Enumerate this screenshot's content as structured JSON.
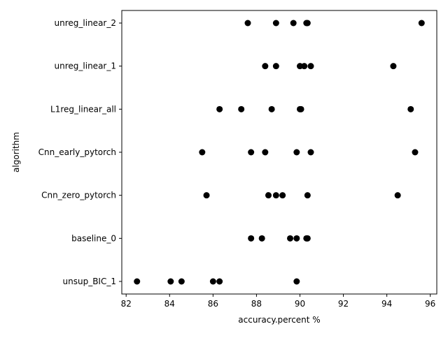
{
  "chart_data": {
    "type": "scatter",
    "title": "",
    "xlabel": "accuracy.percent %",
    "ylabel": "algorithm",
    "xlim": [
      81.8,
      96.3
    ],
    "x_ticks": [
      82,
      84,
      86,
      88,
      90,
      92,
      94,
      96
    ],
    "categories": [
      "unreg_linear_2",
      "unreg_linear_1",
      "L1reg_linear_all",
      "Cnn_early_pytorch",
      "Cnn_zero_pytorch",
      "baseline_0",
      "unsup_BIC_1"
    ],
    "points": [
      {
        "category": "unreg_linear_2",
        "values": [
          87.6,
          88.9,
          89.7,
          90.3,
          90.35,
          95.6
        ]
      },
      {
        "category": "unreg_linear_1",
        "values": [
          88.4,
          88.9,
          90.0,
          90.2,
          90.5,
          94.3
        ]
      },
      {
        "category": "L1reg_linear_all",
        "values": [
          86.3,
          87.3,
          88.7,
          90.0,
          90.05,
          95.1
        ]
      },
      {
        "category": "Cnn_early_pytorch",
        "values": [
          85.5,
          87.75,
          88.4,
          89.85,
          90.5,
          95.3
        ]
      },
      {
        "category": "Cnn_zero_pytorch",
        "values": [
          85.7,
          88.55,
          88.9,
          89.2,
          90.35,
          94.5
        ]
      },
      {
        "category": "baseline_0",
        "values": [
          87.75,
          88.25,
          89.55,
          89.85,
          90.3,
          90.35
        ]
      },
      {
        "category": "unsup_BIC_1",
        "values": [
          82.5,
          84.05,
          84.55,
          86.0,
          86.3,
          89.85
        ]
      }
    ],
    "grid": false,
    "legend": false,
    "marker_color": "#000000"
  }
}
